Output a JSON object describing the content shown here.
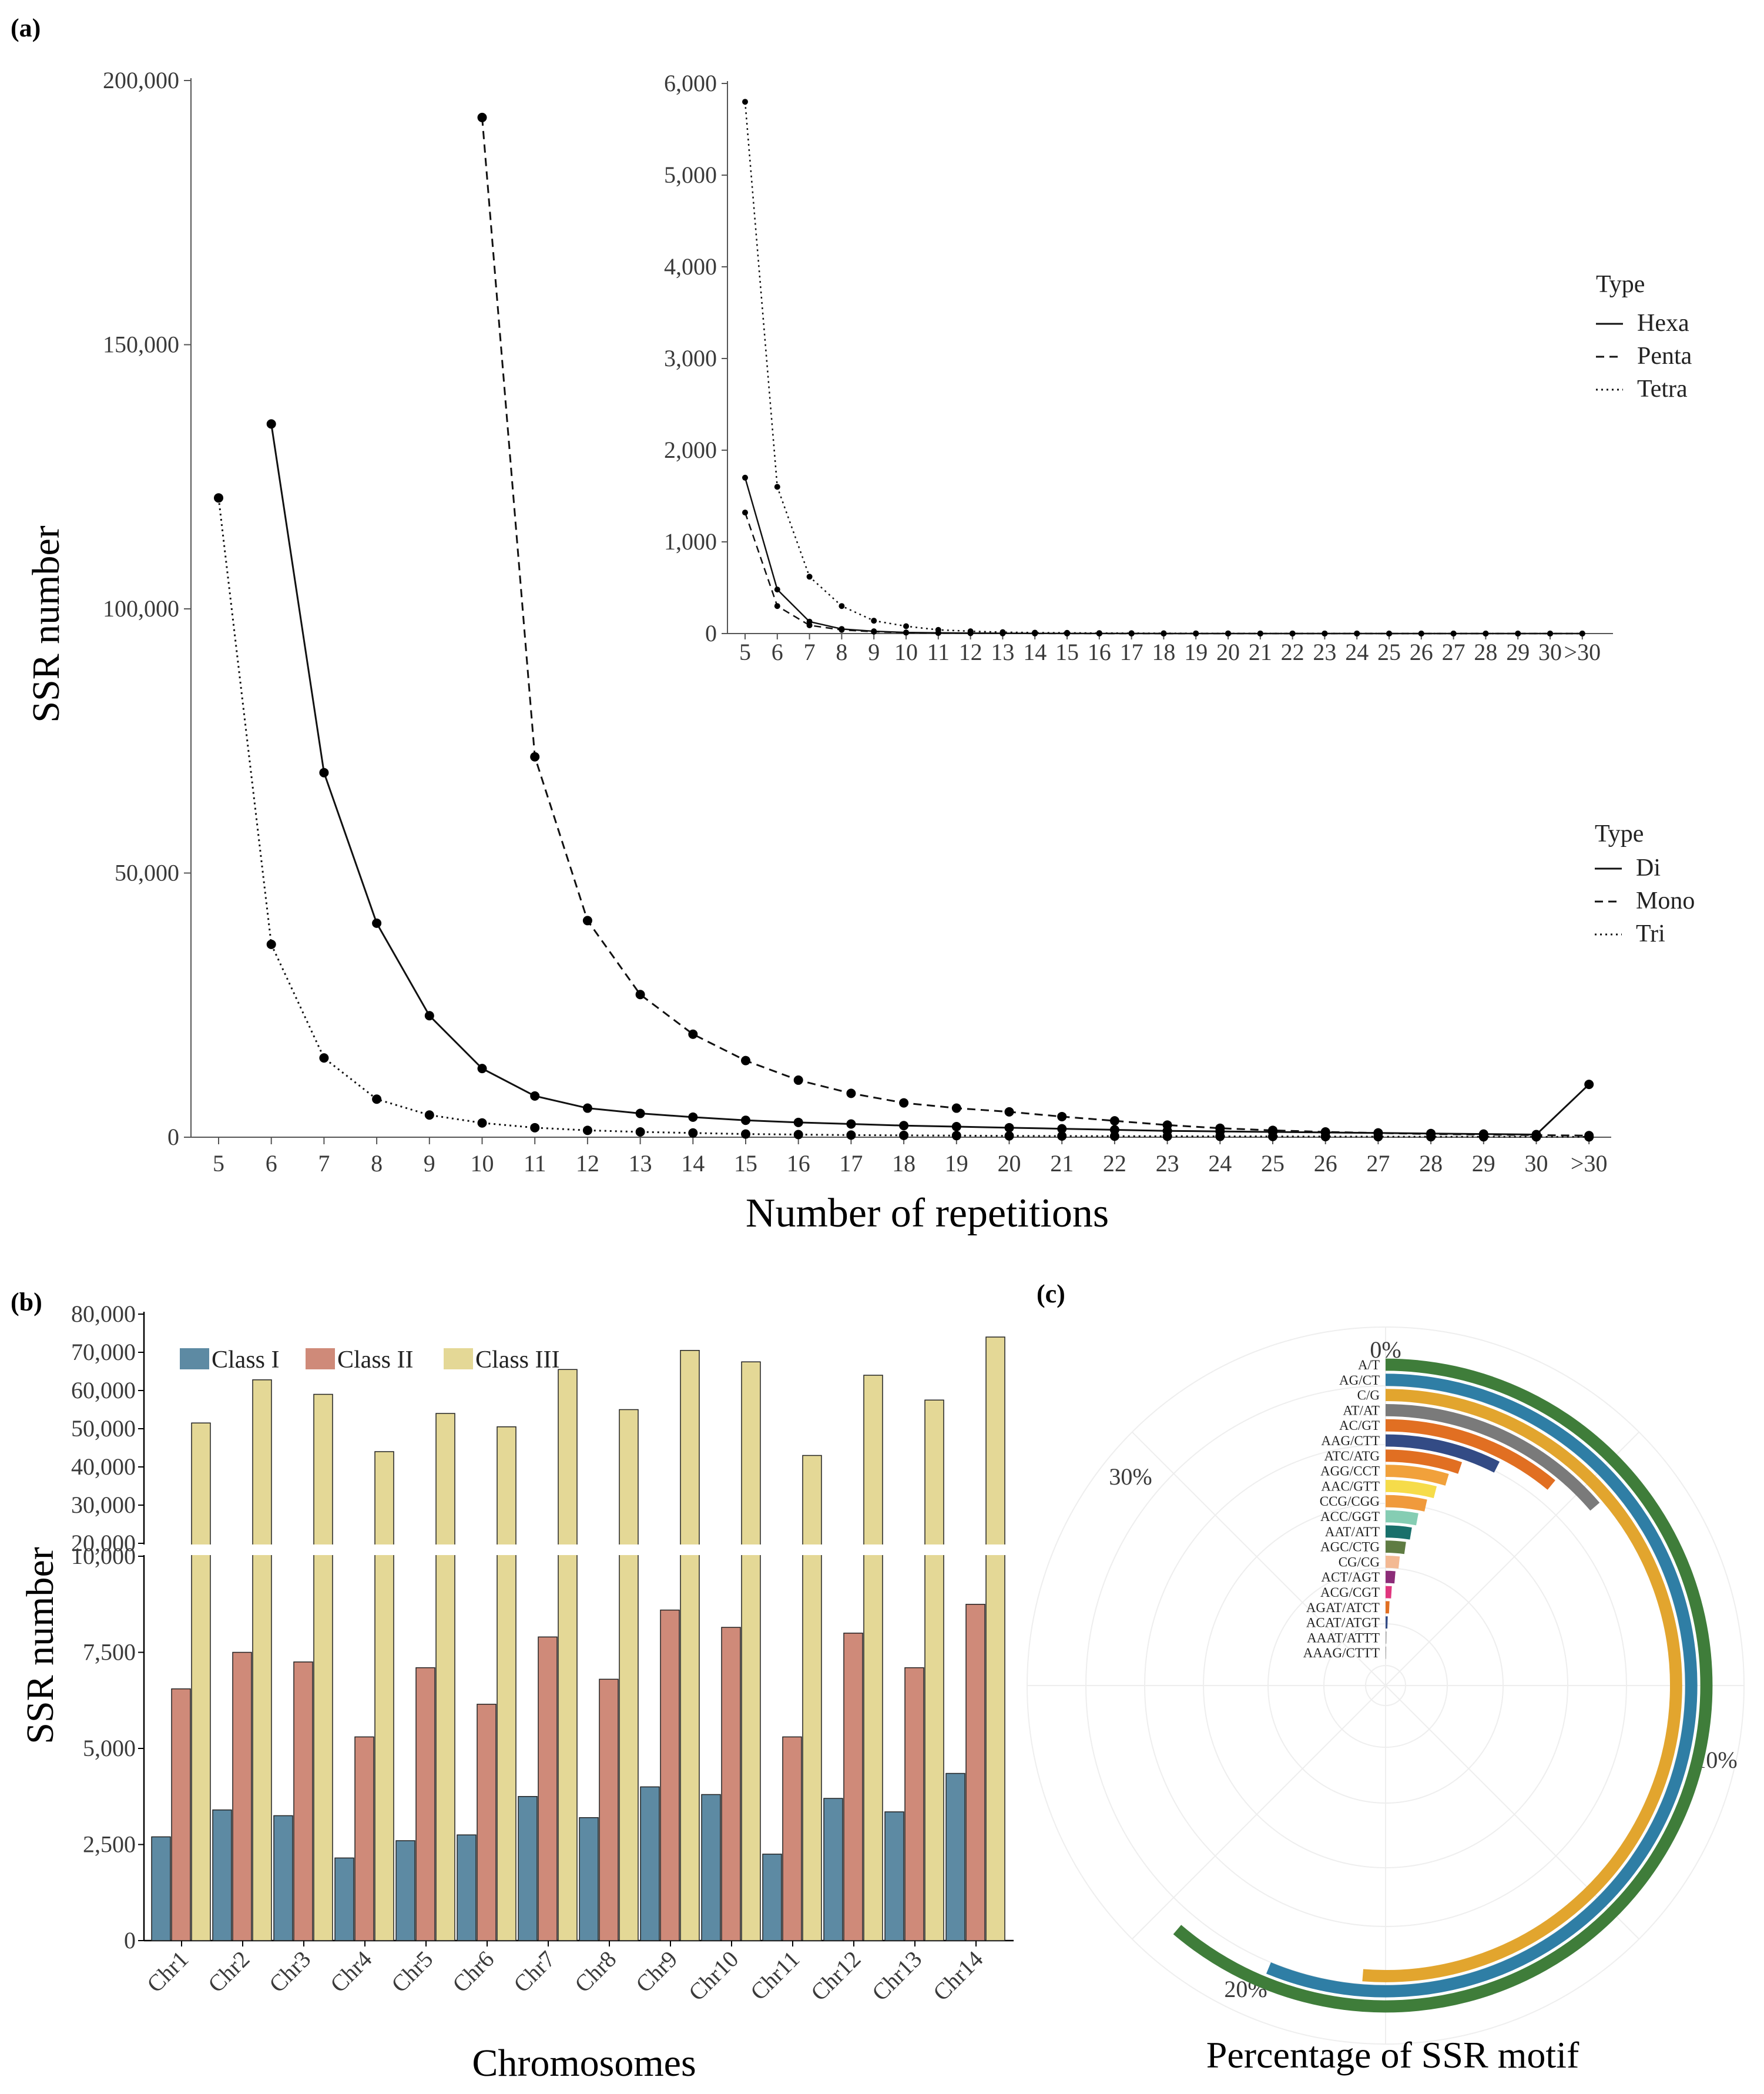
{
  "panels": {
    "a": "(a)",
    "b": "(b)",
    "c": "(c)"
  },
  "chart_data": [
    {
      "id": "a-main",
      "type": "line",
      "ylabel": "SSR number",
      "xlabel": "Number of repetitions",
      "x": [
        "5",
        "6",
        "7",
        "8",
        "9",
        "10",
        "11",
        "12",
        "13",
        "14",
        "15",
        "16",
        "17",
        "18",
        "19",
        "20",
        "21",
        "22",
        "23",
        "24",
        "25",
        "26",
        "27",
        "28",
        "29",
        "30",
        ">30"
      ],
      "ylim": [
        0,
        200000
      ],
      "yticks": [
        0,
        50000,
        100000,
        150000,
        200000
      ],
      "ytick_labels": [
        "0",
        "50,000",
        "100,000",
        "150,000",
        "200,000"
      ],
      "legend_title": "Type",
      "series": [
        {
          "name": "Di",
          "style": "solid",
          "values": [
            null,
            135000,
            69000,
            40500,
            23000,
            13000,
            7800,
            5500,
            4500,
            3800,
            3200,
            2800,
            2500,
            2200,
            2000,
            1800,
            1600,
            1400,
            1200,
            1100,
            1000,
            900,
            800,
            700,
            600,
            500,
            10000
          ]
        },
        {
          "name": "Mono",
          "style": "dashed",
          "values": [
            null,
            null,
            null,
            null,
            null,
            193000,
            72000,
            41000,
            27000,
            19500,
            14500,
            10800,
            8300,
            6500,
            5500,
            4800,
            3900,
            3100,
            2300,
            1700,
            1300,
            1000,
            800,
            600,
            500,
            400,
            300
          ]
        },
        {
          "name": "Tri",
          "style": "dotted",
          "values": [
            121000,
            36500,
            15000,
            7200,
            4200,
            2700,
            1800,
            1300,
            1000,
            800,
            600,
            500,
            400,
            350,
            300,
            250,
            220,
            200,
            180,
            160,
            140,
            120,
            100,
            90,
            80,
            70,
            60
          ]
        }
      ]
    },
    {
      "id": "a-inset",
      "type": "line",
      "x": [
        "5",
        "6",
        "7",
        "8",
        "9",
        "10",
        "11",
        "12",
        "13",
        "14",
        "15",
        "16",
        "17",
        "18",
        "19",
        "20",
        "21",
        "22",
        "23",
        "24",
        "25",
        "26",
        "27",
        "28",
        "29",
        "30",
        ">30"
      ],
      "ylim": [
        0,
        6000
      ],
      "yticks": [
        0,
        1000,
        2000,
        3000,
        4000,
        5000,
        6000
      ],
      "ytick_labels": [
        "0",
        "1,000",
        "2,000",
        "3,000",
        "4,000",
        "5,000",
        "6,000"
      ],
      "legend_title": "Type",
      "series": [
        {
          "name": "Hexa",
          "style": "solid",
          "values": [
            1700,
            480,
            130,
            50,
            25,
            12,
            8,
            5,
            3,
            2,
            1,
            1,
            1,
            0,
            0,
            0,
            0,
            0,
            0,
            0,
            0,
            0,
            0,
            0,
            0,
            0,
            0
          ]
        },
        {
          "name": "Penta",
          "style": "dashed",
          "values": [
            1320,
            300,
            90,
            40,
            20,
            10,
            6,
            4,
            2,
            1,
            1,
            0,
            0,
            0,
            0,
            0,
            0,
            0,
            0,
            0,
            0,
            0,
            0,
            0,
            0,
            0,
            0
          ]
        },
        {
          "name": "Tetra",
          "style": "dotted",
          "values": [
            5800,
            1600,
            620,
            300,
            140,
            80,
            40,
            25,
            15,
            10,
            8,
            5,
            4,
            3,
            2,
            2,
            1,
            1,
            1,
            1,
            0,
            0,
            0,
            0,
            0,
            0,
            0
          ]
        }
      ]
    },
    {
      "id": "b",
      "type": "bar",
      "ylabel": "SSR number",
      "xlabel": "Chromosomes",
      "categories": [
        "Chr1",
        "Chr2",
        "Chr3",
        "Chr4",
        "Chr5",
        "Chr6",
        "Chr7",
        "Chr8",
        "Chr9",
        "Chr10",
        "Chr11",
        "Chr12",
        "Chr13",
        "Chr14"
      ],
      "axis_break": [
        10000,
        20000
      ],
      "yticks_lower": [
        0,
        2500,
        5000,
        7500,
        10000
      ],
      "yticks_lower_labels": [
        "0",
        "2,500",
        "5,000",
        "7,500",
        "10,000"
      ],
      "yticks_upper": [
        20000,
        30000,
        40000,
        50000,
        60000,
        70000,
        80000
      ],
      "yticks_upper_labels": [
        "20,000",
        "30,000",
        "40,000",
        "50,000",
        "60,000",
        "70,000",
        "80,000"
      ],
      "colors": {
        "Class I": "#5d8aa3",
        "Class II": "#cf8a79",
        "Class III": "#e4d896"
      },
      "series": [
        {
          "name": "Class I",
          "values": [
            2700,
            3400,
            3250,
            2150,
            2600,
            2750,
            3750,
            3200,
            4000,
            3800,
            2250,
            3700,
            3350,
            4350
          ]
        },
        {
          "name": "Class II",
          "values": [
            6550,
            7500,
            7250,
            5300,
            7100,
            6150,
            7900,
            6800,
            8600,
            8150,
            5300,
            8000,
            7100,
            8750
          ]
        },
        {
          "name": "Class III",
          "values": [
            51500,
            62800,
            59000,
            44000,
            54000,
            50500,
            65500,
            55000,
            70500,
            67500,
            43000,
            64000,
            57500,
            74000
          ]
        }
      ]
    },
    {
      "id": "c",
      "type": "radial-bar",
      "xlabel": "Percentage of SSR motif",
      "max_percent": 40,
      "ticks": [
        "0%",
        "10%",
        "20%",
        "30%"
      ],
      "motifs": [
        {
          "label": "A/T",
          "value": 24.5,
          "color": "#3f7d3a"
        },
        {
          "label": "AG/CT",
          "value": 22.5,
          "color": "#2f7ea5"
        },
        {
          "label": "C/G",
          "value": 20.5,
          "color": "#e2a52e"
        },
        {
          "label": "AT/AT",
          "value": 5.5,
          "color": "#7a7a7a"
        },
        {
          "label": "AC/GT",
          "value": 4.4,
          "color": "#e16f22"
        },
        {
          "label": "AAG/CTT",
          "value": 3.0,
          "color": "#334b85"
        },
        {
          "label": "ATC/ATG",
          "value": 2.1,
          "color": "#e16f22"
        },
        {
          "label": "AGG/CCT",
          "value": 1.85,
          "color": "#f1a13b"
        },
        {
          "label": "AAC/GTT",
          "value": 1.6,
          "color": "#f6dc4a"
        },
        {
          "label": "CCG/CGG",
          "value": 1.4,
          "color": "#f09a3c"
        },
        {
          "label": "ACC/GGT",
          "value": 1.2,
          "color": "#85cdb3"
        },
        {
          "label": "AAT/ATT",
          "value": 1.05,
          "color": "#19706b"
        },
        {
          "label": "AGC/CTG",
          "value": 0.9,
          "color": "#5f7c43"
        },
        {
          "label": "CG/CG",
          "value": 0.7,
          "color": "#f3b993"
        },
        {
          "label": "ACT/AGT",
          "value": 0.55,
          "color": "#8c2c78"
        },
        {
          "label": "ACG/CGT",
          "value": 0.4,
          "color": "#e0367e"
        },
        {
          "label": "AGAT/ATCT",
          "value": 0.3,
          "color": "#e16f22"
        },
        {
          "label": "ACAT/ATGT",
          "value": 0.2,
          "color": "#334b85"
        },
        {
          "label": "AAAT/ATTT",
          "value": 0.12,
          "color": "#a8a8a8"
        },
        {
          "label": "AAAG/CTTT",
          "value": 0.08,
          "color": "#7a7a7a"
        }
      ]
    }
  ]
}
